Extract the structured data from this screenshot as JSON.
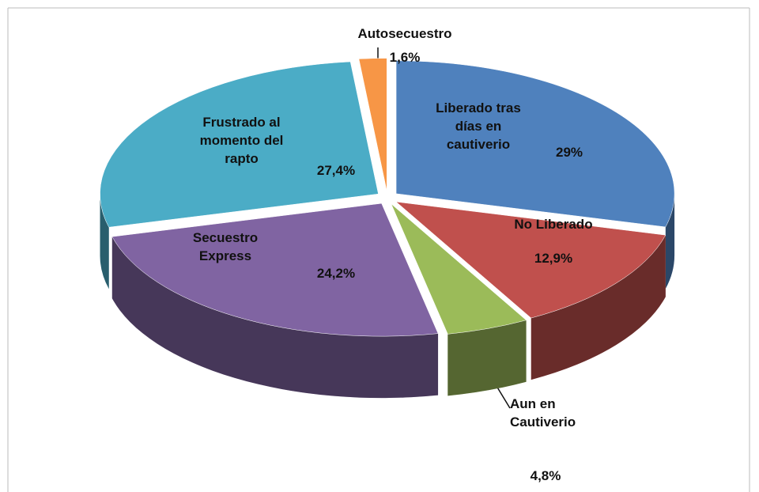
{
  "chart_data": {
    "type": "pie",
    "categories": [
      "Liberado tras días en cautiverio",
      "No Liberado",
      "Aun en Cautiverio",
      "Secuestro Express",
      "Frustrado al momento del rapto",
      "Autosecuestro"
    ],
    "values": [
      29,
      12.9,
      4.8,
      24.2,
      27.4,
      1.6
    ],
    "value_labels": [
      "29%",
      "12,9%",
      "4,8%",
      "24,2%",
      "27,4%",
      "1,6%"
    ],
    "colors": [
      "#4f81bd",
      "#c0504d",
      "#9bbb59",
      "#8064a2",
      "#4bacc6",
      "#f79646"
    ]
  }
}
